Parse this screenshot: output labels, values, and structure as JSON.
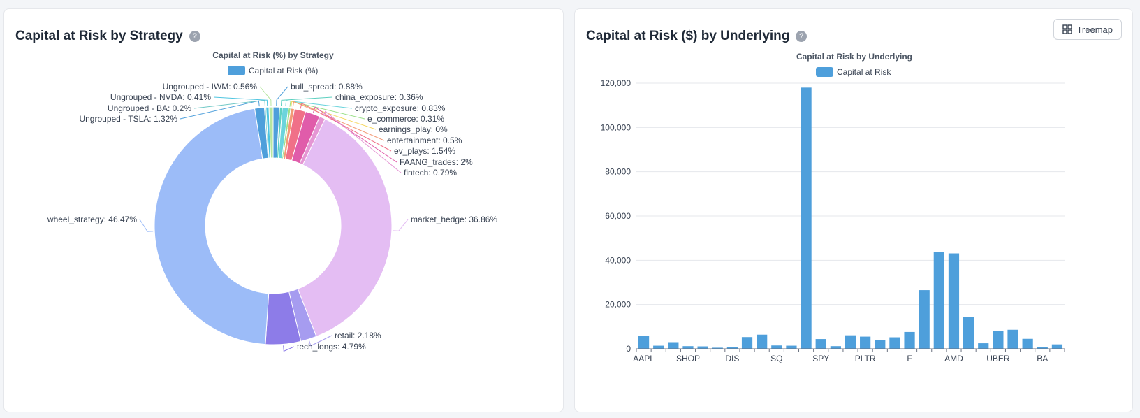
{
  "left_panel": {
    "title": "Capital at Risk by Strategy",
    "help_icon": "question-circle-icon"
  },
  "right_panel": {
    "title": "Capital at Risk ($) by Underlying",
    "help_icon": "question-circle-icon",
    "treemap_button": {
      "label": "Treemap",
      "icon": "grid-icon"
    }
  },
  "chart_data": [
    {
      "type": "pie",
      "variant": "donut",
      "title": "Capital at Risk (%) by Strategy",
      "legend": [
        {
          "name": "Capital at Risk (%)",
          "color": "#4e9fdb"
        }
      ],
      "legend_position": "top-center",
      "unit": "%",
      "slices": [
        {
          "label": "bull_spread",
          "value": 0.88,
          "color": "#4e9fdb"
        },
        {
          "label": "china_exposure",
          "value": 0.36,
          "color": "#5dd0c0"
        },
        {
          "label": "crypto_exposure",
          "value": 0.83,
          "color": "#6cd4dc"
        },
        {
          "label": "e_commerce",
          "value": 0.31,
          "color": "#9be08a"
        },
        {
          "label": "earnings_play",
          "value": 0,
          "color": "#f6d860"
        },
        {
          "label": "entertainment",
          "value": 0.5,
          "color": "#f39a76"
        },
        {
          "label": "ev_plays",
          "value": 1.54,
          "color": "#f07088"
        },
        {
          "label": "FAANG_trades",
          "value": 2,
          "color": "#e05caa"
        },
        {
          "label": "fintech",
          "value": 0.79,
          "color": "#e596d4"
        },
        {
          "label": "market_hedge",
          "value": 36.86,
          "color": "#e4bdf3"
        },
        {
          "label": "retail",
          "value": 2.18,
          "color": "#a69cf0"
        },
        {
          "label": "tech_longs",
          "value": 4.79,
          "color": "#8d7ce8"
        },
        {
          "label": "wheel_strategy",
          "value": 46.47,
          "color": "#9cbcf8"
        },
        {
          "label": "Ungrouped - TSLA",
          "value": 1.32,
          "color": "#4e9fdb"
        },
        {
          "label": "Ungrouped - BA",
          "value": 0.2,
          "color": "#70c8c6"
        },
        {
          "label": "Ungrouped - NVDA",
          "value": 0.41,
          "color": "#4fc5e0"
        },
        {
          "label": "Ungrouped - IWM",
          "value": 0.56,
          "color": "#b6e6a0"
        }
      ]
    },
    {
      "type": "bar",
      "title": "Capital at Risk by Underlying",
      "legend": [
        {
          "name": "Capital at Risk",
          "color": "#4e9fdb"
        }
      ],
      "legend_position": "top-center",
      "ylim": [
        0,
        120000
      ],
      "yticks": [
        "0",
        "20,000",
        "40,000",
        "60,000",
        "80,000",
        "100,000",
        "120,000"
      ],
      "ytick_values": [
        0,
        20000,
        40000,
        60000,
        80000,
        100000,
        120000
      ],
      "xtick_labels": [
        {
          "index": 0,
          "label": "AAPL"
        },
        {
          "index": 3,
          "label": "SHOP"
        },
        {
          "index": 6,
          "label": "DIS"
        },
        {
          "index": 9,
          "label": "SQ"
        },
        {
          "index": 12,
          "label": "SPY"
        },
        {
          "index": 15,
          "label": "PLTR"
        },
        {
          "index": 18,
          "label": "F"
        },
        {
          "index": 21,
          "label": "AMD"
        },
        {
          "index": 24,
          "label": "UBER"
        },
        {
          "index": 27,
          "label": "BA"
        }
      ],
      "values": [
        6000,
        1400,
        3000,
        1200,
        1100,
        500,
        800,
        5300,
        6400,
        1500,
        1400,
        118000,
        4400,
        1200,
        6100,
        5500,
        3800,
        5200,
        7600,
        26500,
        43600,
        43100,
        14500,
        2500,
        8200,
        8600,
        4500,
        800,
        2000
      ]
    }
  ]
}
